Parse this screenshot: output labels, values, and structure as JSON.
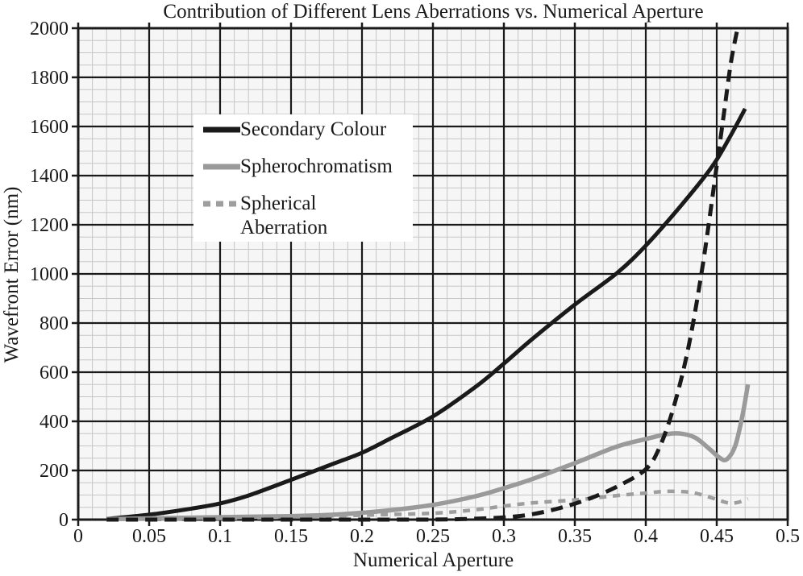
{
  "figure": {
    "title": "Contribution of Different Lens Aberrations vs. Numerical Aperture",
    "x_axis_title": "Numerical Aperture",
    "y_axis_title": "Wavefront Error (nm)"
  },
  "colors": {
    "black": "#1a1a1a",
    "gray": "#9a9a9a",
    "minor_grid": "#c6c6c6",
    "major_grid": "#1a1a1a",
    "plot_bg": "#f6f6f6",
    "page_bg": "#ffffff",
    "legend_bg": "#ffffff",
    "text": "#1a1a1a"
  },
  "chart_data": {
    "type": "line",
    "title": "Contribution of Different Lens Aberrations vs. Numerical Aperture",
    "xlabel": "Numerical Aperture",
    "ylabel": "Wavefront Error (nm)",
    "xlim": [
      0,
      0.5
    ],
    "ylim": [
      0,
      2000
    ],
    "x_major_step": 0.05,
    "x_minor_step": 0.01,
    "y_major_step": 200,
    "y_minor_step": 50,
    "x_tick_labels": [
      "0",
      "0.05",
      "0.1",
      "0.15",
      "0.2",
      "0.25",
      "0.3",
      "0.35",
      "0.4",
      "0.45",
      "0.5"
    ],
    "y_tick_labels": [
      "0",
      "200",
      "400",
      "600",
      "800",
      "1000",
      "1200",
      "1400",
      "1600",
      "1800",
      "2000"
    ],
    "grid": "major+minor",
    "legend_position": "upper-left-inside",
    "series": [
      {
        "name": "Secondary Colour",
        "color": "#1a1a1a",
        "line_style": "solid",
        "stroke_width": 5,
        "dash": "",
        "in_legend": true,
        "legend_lines": [
          "Secondary Colour"
        ],
        "points": [
          [
            0.02,
            3
          ],
          [
            0.05,
            20
          ],
          [
            0.08,
            45
          ],
          [
            0.1,
            66
          ],
          [
            0.12,
            98
          ],
          [
            0.15,
            162
          ],
          [
            0.18,
            228
          ],
          [
            0.2,
            272
          ],
          [
            0.22,
            330
          ],
          [
            0.25,
            420
          ],
          [
            0.28,
            540
          ],
          [
            0.3,
            635
          ],
          [
            0.32,
            735
          ],
          [
            0.35,
            875
          ],
          [
            0.38,
            1005
          ],
          [
            0.4,
            1115
          ],
          [
            0.42,
            1245
          ],
          [
            0.44,
            1385
          ],
          [
            0.45,
            1465
          ],
          [
            0.46,
            1565
          ],
          [
            0.47,
            1672
          ]
        ]
      },
      {
        "name": "Spherochromatism",
        "color": "#9a9a9a",
        "line_style": "solid",
        "stroke_width": 5.5,
        "dash": "",
        "in_legend": true,
        "legend_lines": [
          "Spherochromatism"
        ],
        "points": [
          [
            0.02,
            2
          ],
          [
            0.05,
            5
          ],
          [
            0.1,
            10
          ],
          [
            0.15,
            14
          ],
          [
            0.18,
            20
          ],
          [
            0.2,
            28
          ],
          [
            0.22,
            38
          ],
          [
            0.25,
            60
          ],
          [
            0.28,
            95
          ],
          [
            0.3,
            128
          ],
          [
            0.32,
            165
          ],
          [
            0.35,
            230
          ],
          [
            0.38,
            298
          ],
          [
            0.4,
            328
          ],
          [
            0.415,
            348
          ],
          [
            0.425,
            350
          ],
          [
            0.435,
            333
          ],
          [
            0.445,
            287
          ],
          [
            0.452,
            252
          ],
          [
            0.457,
            245
          ],
          [
            0.463,
            300
          ],
          [
            0.468,
            420
          ],
          [
            0.472,
            550
          ]
        ]
      },
      {
        "name": "Spherical Aberration",
        "color": "#9e9e9e",
        "line_style": "dashed",
        "stroke_width": 4.5,
        "dash": "9 8",
        "in_legend": true,
        "legend_lines": [
          "Spherical",
          "Aberration"
        ],
        "points": [
          [
            0.02,
            1
          ],
          [
            0.05,
            2
          ],
          [
            0.1,
            5
          ],
          [
            0.15,
            11
          ],
          [
            0.2,
            18
          ],
          [
            0.25,
            26
          ],
          [
            0.28,
            40
          ],
          [
            0.3,
            55
          ],
          [
            0.32,
            68
          ],
          [
            0.35,
            80
          ],
          [
            0.38,
            98
          ],
          [
            0.4,
            108
          ],
          [
            0.415,
            115
          ],
          [
            0.43,
            112
          ],
          [
            0.44,
            100
          ],
          [
            0.45,
            82
          ],
          [
            0.458,
            68
          ],
          [
            0.465,
            70
          ],
          [
            0.472,
            85
          ]
        ]
      },
      {
        "name": "Unlabelled steep curve (black dashed)",
        "color": "#1a1a1a",
        "line_style": "dashed",
        "stroke_width": 5,
        "dash": "15 9",
        "in_legend": false,
        "legend_lines": [],
        "points": [
          [
            0.02,
            0
          ],
          [
            0.1,
            0
          ],
          [
            0.18,
            0
          ],
          [
            0.24,
            0
          ],
          [
            0.27,
            2
          ],
          [
            0.3,
            9
          ],
          [
            0.32,
            22
          ],
          [
            0.34,
            48
          ],
          [
            0.36,
            85
          ],
          [
            0.38,
            135
          ],
          [
            0.4,
            205
          ],
          [
            0.41,
            298
          ],
          [
            0.42,
            465
          ],
          [
            0.43,
            700
          ],
          [
            0.44,
            1030
          ],
          [
            0.45,
            1440
          ],
          [
            0.455,
            1650
          ],
          [
            0.46,
            1860
          ],
          [
            0.465,
            2010
          ],
          [
            0.468,
            2100
          ]
        ]
      }
    ]
  }
}
